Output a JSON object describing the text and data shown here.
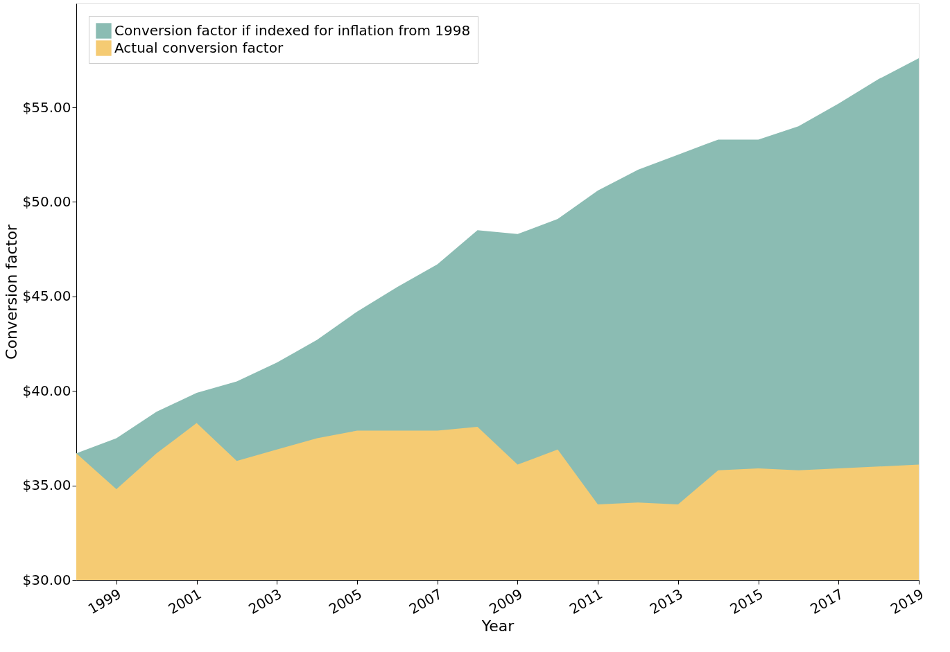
{
  "chart_data": {
    "type": "area",
    "xlabel": "Year",
    "ylabel": "Conversion factor",
    "x": [
      1998,
      1999,
      2000,
      2001,
      2002,
      2003,
      2004,
      2005,
      2006,
      2007,
      2008,
      2009,
      2010,
      2011,
      2012,
      2013,
      2014,
      2015,
      2016,
      2017,
      2018,
      2019
    ],
    "series": [
      {
        "name": "Conversion factor if indexed for inflation from 1998",
        "color": "#8bbcb3",
        "values": [
          36.7,
          37.5,
          38.9,
          39.9,
          40.5,
          41.5,
          42.7,
          44.2,
          45.5,
          46.7,
          48.5,
          48.3,
          49.1,
          50.6,
          51.7,
          52.5,
          53.3,
          53.3,
          54.0,
          55.2,
          56.5,
          57.6
        ]
      },
      {
        "name": "Actual conversion factor",
        "color": "#f5cb73",
        "values": [
          36.7,
          34.8,
          36.7,
          38.3,
          36.3,
          36.9,
          37.5,
          37.9,
          37.9,
          37.9,
          38.1,
          36.1,
          36.9,
          34.0,
          34.1,
          34.0,
          35.8,
          35.9,
          35.8,
          35.9,
          36.0,
          36.1
        ]
      }
    ],
    "xlim": [
      1998,
      2019
    ],
    "xticks": [
      1999,
      2001,
      2003,
      2005,
      2007,
      2009,
      2011,
      2013,
      2015,
      2017,
      2019
    ],
    "ylim": [
      30,
      60.5
    ],
    "yticks": [
      {
        "value": 30,
        "label": "$30.00"
      },
      {
        "value": 35,
        "label": "$35.00"
      },
      {
        "value": 40,
        "label": "$40.00"
      },
      {
        "value": 45,
        "label": "$45.00"
      },
      {
        "value": 50,
        "label": "$50.00"
      },
      {
        "value": 55,
        "label": "$55.00"
      }
    ],
    "grid": false,
    "legend": "top left"
  }
}
